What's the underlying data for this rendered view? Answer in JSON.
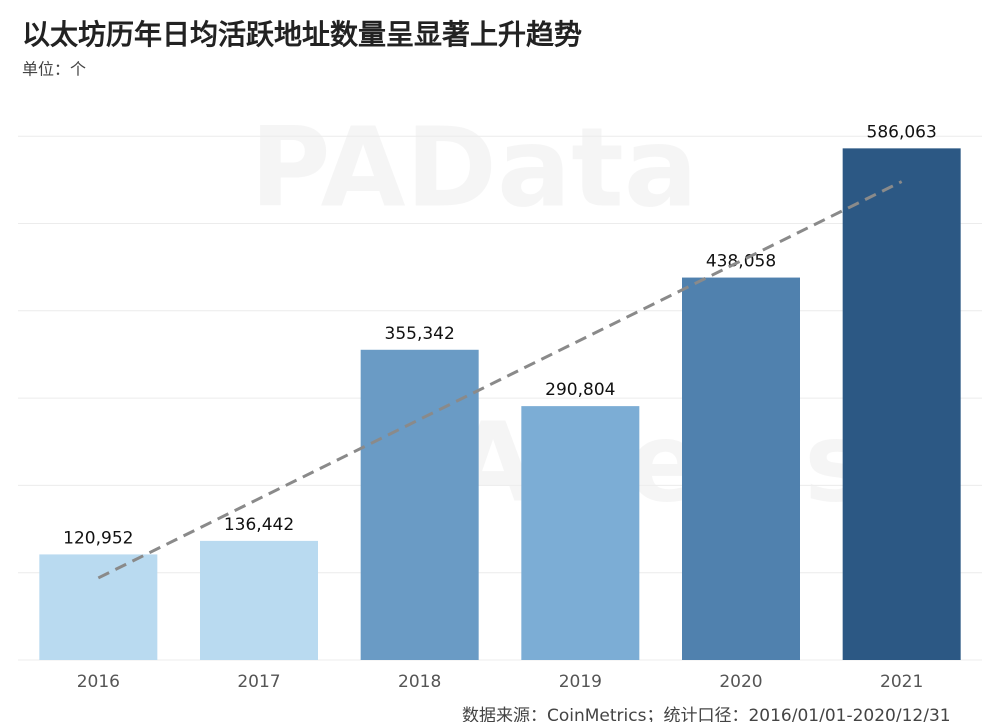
{
  "chart_data": {
    "type": "bar",
    "title": "以太坊历年日均活跃地址数量呈显著上升趋势",
    "subtitle": "单位：个",
    "source": "数据来源：CoinMetrics；统计口径：2016/01/01-2020/12/31",
    "watermarks": [
      "PAData",
      "PANews"
    ],
    "categories": [
      "2016",
      "2017",
      "2018",
      "2019",
      "2020",
      "2021"
    ],
    "values": [
      120952,
      136442,
      355342,
      290804,
      438058,
      586063
    ],
    "value_labels": [
      "120,952",
      "136,442",
      "355,342",
      "290,804",
      "438,058",
      "586,063"
    ],
    "colors": [
      "#b9daf0",
      "#b9daf0",
      "#6a9bc5",
      "#7cadd5",
      "#5081ae",
      "#2c5884"
    ],
    "ylim": [
      0,
      630000
    ],
    "yticks": [
      0,
      100000,
      200000,
      300000,
      400000,
      500000,
      600000
    ],
    "grid": true,
    "trend_line": {
      "values": [
        94000,
        548000
      ],
      "color": "#8a8a8a"
    }
  }
}
